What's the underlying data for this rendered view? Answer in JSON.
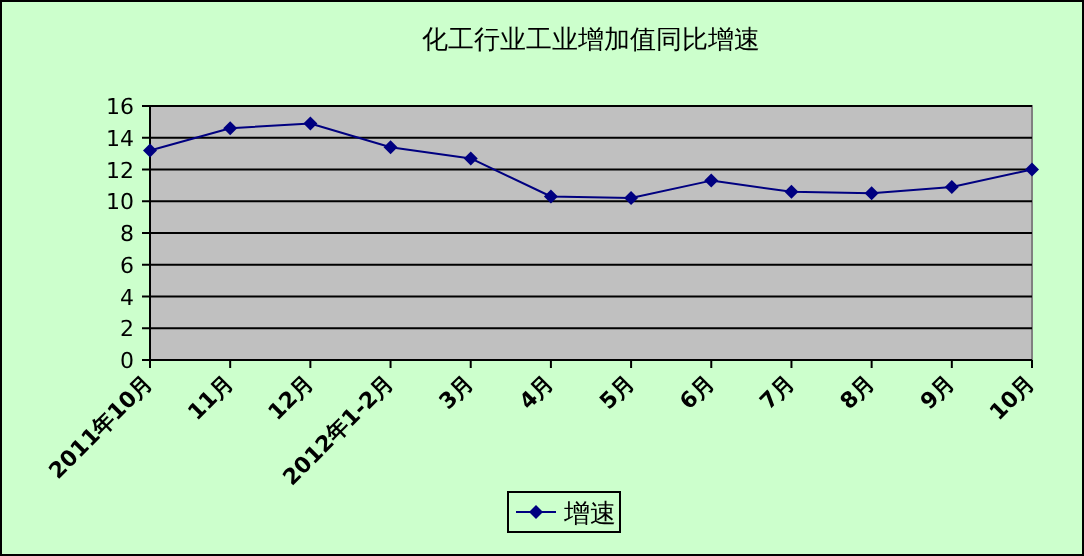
{
  "chart_data": {
    "type": "line",
    "title": "化工行业工业增加值同比增速",
    "categories": [
      "2011年10月",
      "11月",
      "12月",
      "2012年1-2月",
      "3月",
      "4月",
      "5月",
      "6月",
      "7月",
      "8月",
      "9月",
      "10月"
    ],
    "series": [
      {
        "name": "增速",
        "color": "#000080",
        "values": [
          13.2,
          14.6,
          14.9,
          13.4,
          12.7,
          10.3,
          10.2,
          11.3,
          10.6,
          10.5,
          10.9,
          12.0
        ]
      }
    ],
    "ylim": [
      0,
      16
    ],
    "yticks": [
      0,
      2,
      4,
      6,
      8,
      10,
      12,
      14,
      16
    ],
    "grid": "y",
    "legend": "bottom",
    "marker": "diamond",
    "line_style": "solid"
  }
}
